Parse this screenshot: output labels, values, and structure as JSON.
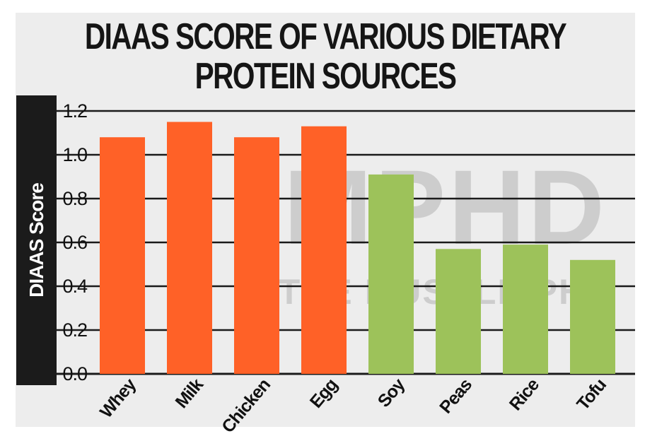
{
  "colors": {
    "animal": "#ff6127",
    "plant": "#9dc25a",
    "grid": "#1a1a1a",
    "panel": "#ededed",
    "ylabel_bg": "#1b1b1b"
  },
  "watermark": {
    "line1": "MPHD",
    "line2": "THE MUSCLE PHD"
  },
  "chart_data": {
    "type": "bar",
    "title": "DIAAS SCORE OF VARIOUS DIETARY PROTEIN SOURCES",
    "title_lines": [
      "DIAAS SCORE OF VARIOUS DIETARY",
      "PROTEIN SOURCES"
    ],
    "xlabel": "",
    "ylabel": "DIAAS Score",
    "ylim": [
      0,
      1.2
    ],
    "yticks": [
      "0.0",
      "0.2",
      "0.4",
      "0.6",
      "0.8",
      "1.0",
      "1.2"
    ],
    "grid": true,
    "categories": [
      "Whey",
      "Milk",
      "Chicken",
      "Egg",
      "Soy",
      "Peas",
      "Rice",
      "Tofu"
    ],
    "values": [
      1.08,
      1.15,
      1.08,
      1.13,
      0.91,
      0.57,
      0.59,
      0.52
    ],
    "bar_groups": [
      "animal",
      "animal",
      "animal",
      "animal",
      "plant",
      "plant",
      "plant",
      "plant"
    ]
  }
}
